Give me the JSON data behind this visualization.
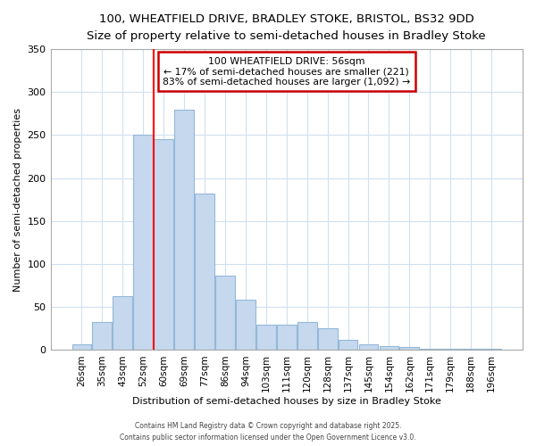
{
  "title_line1": "100, WHEATFIELD DRIVE, BRADLEY STOKE, BRISTOL, BS32 9DD",
  "title_line2": "Size of property relative to semi-detached houses in Bradley Stoke",
  "xlabel": "Distribution of semi-detached houses by size in Bradley Stoke",
  "ylabel": "Number of semi-detached properties",
  "categories": [
    "26sqm",
    "35sqm",
    "43sqm",
    "52sqm",
    "60sqm",
    "69sqm",
    "77sqm",
    "86sqm",
    "94sqm",
    "103sqm",
    "111sqm",
    "120sqm",
    "128sqm",
    "137sqm",
    "145sqm",
    "154sqm",
    "162sqm",
    "171sqm",
    "179sqm",
    "188sqm",
    "196sqm"
  ],
  "values": [
    7,
    33,
    63,
    250,
    245,
    280,
    182,
    87,
    59,
    30,
    30,
    33,
    25,
    12,
    7,
    5,
    4,
    2,
    1,
    1,
    1
  ],
  "bar_color": "#c5d8ee",
  "bar_edge_color": "#93b8d8",
  "red_line_x": 3.5,
  "annotation_line1": "100 WHEATFIELD DRIVE: 56sqm",
  "annotation_line2": "← 17% of semi-detached houses are smaller (221)",
  "annotation_line3": "83% of semi-detached houses are larger (1,092) →",
  "annotation_box_facecolor": "#ffffff",
  "annotation_box_edgecolor": "#cc0000",
  "footer_line1": "Contains HM Land Registry data © Crown copyright and database right 2025.",
  "footer_line2": "Contains public sector information licensed under the Open Government Licence v3.0.",
  "background_color": "#ffffff",
  "plot_background": "#ffffff",
  "grid_color": "#d0e0f0",
  "ylim": [
    0,
    350
  ],
  "yticks": [
    0,
    50,
    100,
    150,
    200,
    250,
    300,
    350
  ]
}
